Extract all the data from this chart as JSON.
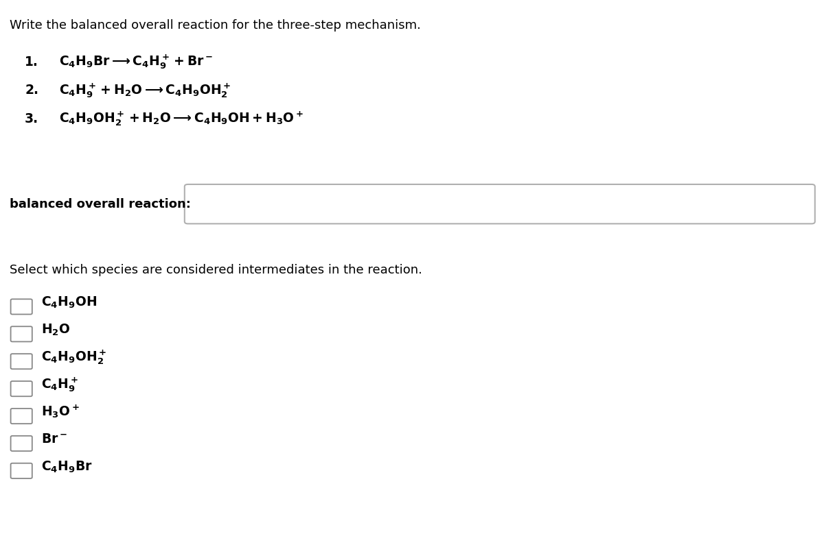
{
  "background_color": "#ffffff",
  "title_text": "Write the balanced overall reaction for the three-step mechanism.",
  "title_fontsize": 13.0,
  "step1_num": "1.",
  "step1_formula": "$\\mathbf{C_4H_9Br \\longrightarrow C_4H_9^+ + Br^-}$",
  "step2_num": "2.",
  "step2_formula": "$\\mathbf{C_4H_9^+ + H_2O \\longrightarrow C_4H_9OH_2^+}$",
  "step3_num": "3.",
  "step3_formula": "$\\mathbf{C_4H_9OH_2^+ + H_2O \\longrightarrow C_4H_9OH + H_3O^+}$",
  "balanced_label": "balanced overall reaction:",
  "balanced_label_fontsize": 13.0,
  "balanced_label_bold": true,
  "select_text": "Select which species are considered intermediates in the reaction.",
  "select_fontsize": 13.0,
  "cb_formulas": [
    "$\\mathbf{C_4H_9OH}$",
    "$\\mathbf{H_2O}$",
    "$\\mathbf{C_4H_9OH_2^+}$",
    "$\\mathbf{C_4H_9^+}$",
    "$\\mathbf{H_3O^+}$",
    "$\\mathbf{Br^-}$",
    "$\\mathbf{C_4H_9Br}$"
  ],
  "cb_fontsize": 13.5,
  "formula_fontsize": 13.5
}
